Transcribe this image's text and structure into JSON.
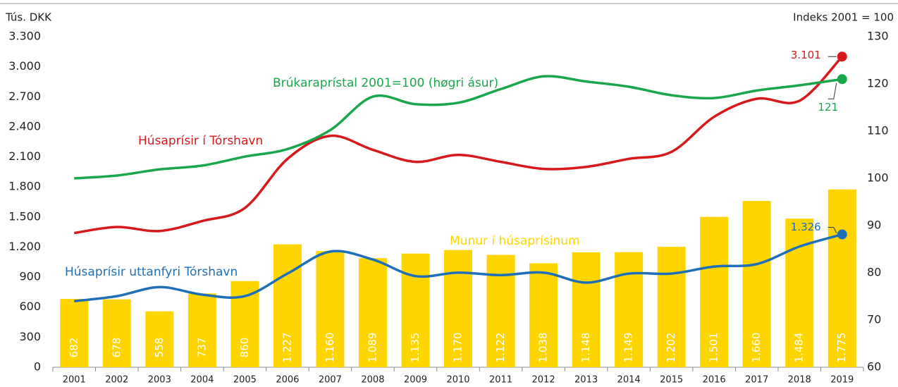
{
  "chart_data": {
    "type": "bar_line",
    "y_label": "Tús. DKK",
    "y2_label": "Indeks 2001 = 100",
    "categories": [
      "2001",
      "2002",
      "2003",
      "2004",
      "2005",
      "2006",
      "2007",
      "2008",
      "2009",
      "2010",
      "2011",
      "2012",
      "2013",
      "2014",
      "2015",
      "2016",
      "2017",
      "2018",
      "2019"
    ],
    "ylim": [
      0,
      3300
    ],
    "yticks": [
      0,
      300,
      600,
      900,
      {
        "value": 1200,
        "label": "1.200"
      },
      {
        "value": 1500,
        "label": "1.500"
      },
      {
        "value": 1800,
        "label": "1.800"
      },
      {
        "value": 2100,
        "label": "2.100"
      },
      {
        "value": 2400,
        "label": "2.400"
      },
      {
        "value": 2700,
        "label": "2.700"
      },
      {
        "value": 3000,
        "label": "3.000"
      },
      {
        "value": 3300,
        "label": "3.300"
      }
    ],
    "y2lim": [
      60,
      130
    ],
    "y2ticks": [
      60,
      70,
      80,
      90,
      100,
      110,
      120,
      130
    ],
    "series": [
      {
        "name": "Munur í húsaprísinum",
        "kind": "bar",
        "color": "#ffd500",
        "values": [
          682,
          678,
          558,
          737,
          860,
          1227,
          1160,
          1089,
          1135,
          1170,
          1122,
          1038,
          1148,
          1149,
          1202,
          1501,
          1660,
          1484,
          1775
        ],
        "value_labels": [
          "682",
          "678",
          "558",
          "737",
          "860",
          "1.227",
          "1.160",
          "1.089",
          "1.135",
          "1.170",
          "1.122",
          "1.038",
          "1.148",
          "1.149",
          "1.202",
          "1.501",
          "1.660",
          "1.484",
          "1.775"
        ]
      },
      {
        "name": "Húsaprísir í Tórshavn",
        "kind": "line",
        "color": "#d7191c",
        "values": [
          1340,
          1400,
          1360,
          1460,
          1590,
          2080,
          2310,
          2170,
          2050,
          2120,
          2050,
          1980,
          2000,
          2080,
          2150,
          2500,
          2680,
          2660,
          3101
        ],
        "value_labels": [
          null,
          null,
          null,
          null,
          null,
          null,
          null,
          null,
          null,
          null,
          null,
          null,
          null,
          null,
          null,
          null,
          null,
          null,
          "3.101"
        ]
      },
      {
        "name": "Húsaprísir uttanfyri Tórshavn",
        "kind": "line",
        "color": "#1f6fb8",
        "values": [
          660,
          710,
          800,
          725,
          710,
          935,
          1155,
          1075,
          910,
          945,
          920,
          945,
          845,
          935,
          935,
          1005,
          1030,
          1205,
          1326
        ],
        "value_labels": [
          null,
          null,
          null,
          null,
          null,
          null,
          null,
          null,
          null,
          null,
          null,
          null,
          null,
          null,
          null,
          null,
          null,
          null,
          "1.326"
        ]
      },
      {
        "name": "Brúkaraprístal 2001=100 (høgri ásur)",
        "kind": "line",
        "axis": "y2",
        "color": "#1aa64a",
        "values": [
          100,
          100.6,
          101.9,
          102.7,
          104.6,
          106.2,
          110.2,
          117.3,
          115.7,
          116,
          118.9,
          121.6,
          120.5,
          119.4,
          117.6,
          117,
          118.6,
          119.7,
          121
        ],
        "value_labels": [
          null,
          null,
          null,
          null,
          null,
          null,
          null,
          null,
          null,
          null,
          null,
          null,
          null,
          null,
          null,
          null,
          null,
          null,
          "121"
        ]
      }
    ]
  }
}
